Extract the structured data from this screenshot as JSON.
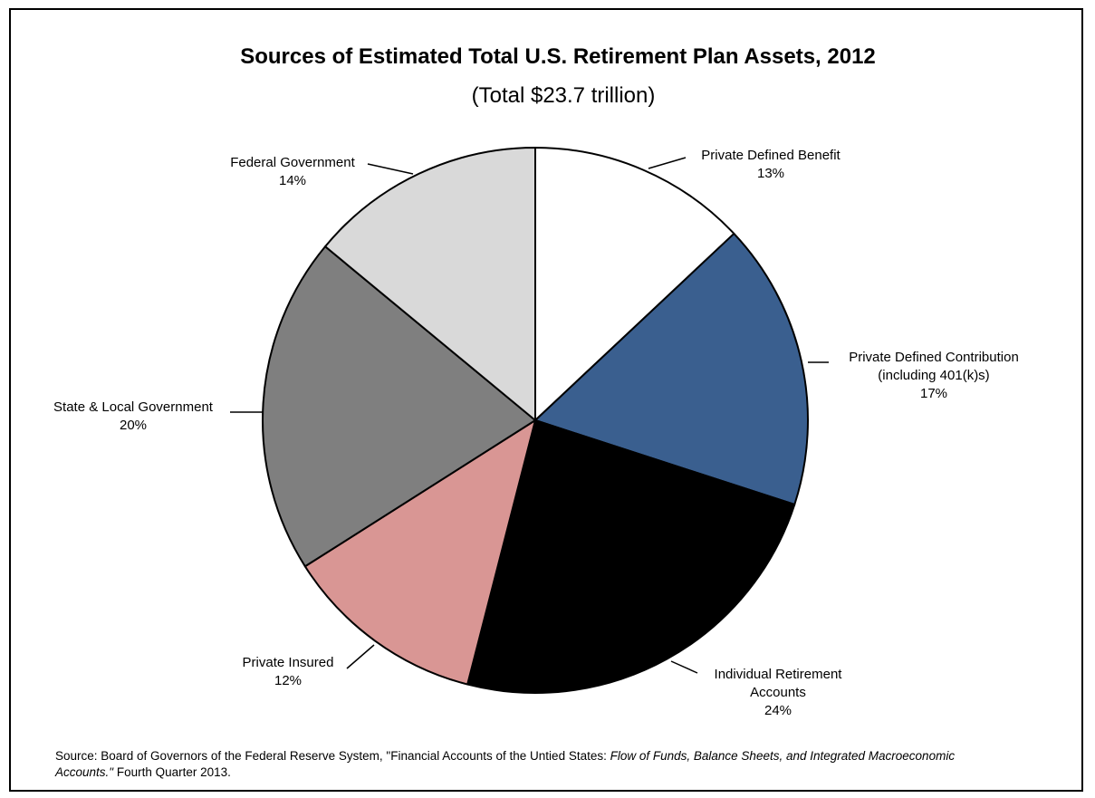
{
  "chart_data": {
    "type": "pie",
    "title": "Sources of Estimated Total U.S. Retirement Plan Assets, 2012",
    "subtitle": "(Total $23.7 trillion)",
    "slices": [
      {
        "name": "Private Defined Benefit",
        "label_lines": [
          "Private Defined Benefit",
          "13%"
        ],
        "value": 13,
        "pct_label": "13%",
        "color": "#ffffff"
      },
      {
        "name": "Private Defined Contribution (including 401(k)s)",
        "label_lines": [
          "Private Defined Contribution",
          "(including 401(k)s)",
          "17%"
        ],
        "value": 17,
        "pct_label": "17%",
        "color": "#3a5f8f"
      },
      {
        "name": "Individual Retirement Accounts",
        "label_lines": [
          "Individual Retirement",
          "Accounts",
          "24%"
        ],
        "value": 24,
        "pct_label": "24%",
        "color": "#000000"
      },
      {
        "name": "Private Insured",
        "label_lines": [
          "Private Insured",
          "12%"
        ],
        "value": 12,
        "pct_label": "12%",
        "color": "#d99694"
      },
      {
        "name": "State & Local Government",
        "label_lines": [
          "State & Local Government",
          "20%"
        ],
        "value": 20,
        "pct_label": "20%",
        "color": "#7f7f7f"
      },
      {
        "name": "Federal Government",
        "label_lines": [
          "Federal Government",
          "14%"
        ],
        "value": 14,
        "pct_label": "14%",
        "color": "#d9d9d9"
      }
    ],
    "legend": "none"
  },
  "source": {
    "prefix": "Source: Board of Governors of the Federal Reserve System, \"Financial Accounts of the Untied States: ",
    "italic": "Flow of Funds, Balance Sheets, and Integrated Macroeconomic Accounts.\"",
    "suffix": " Fourth Quarter 2013."
  }
}
